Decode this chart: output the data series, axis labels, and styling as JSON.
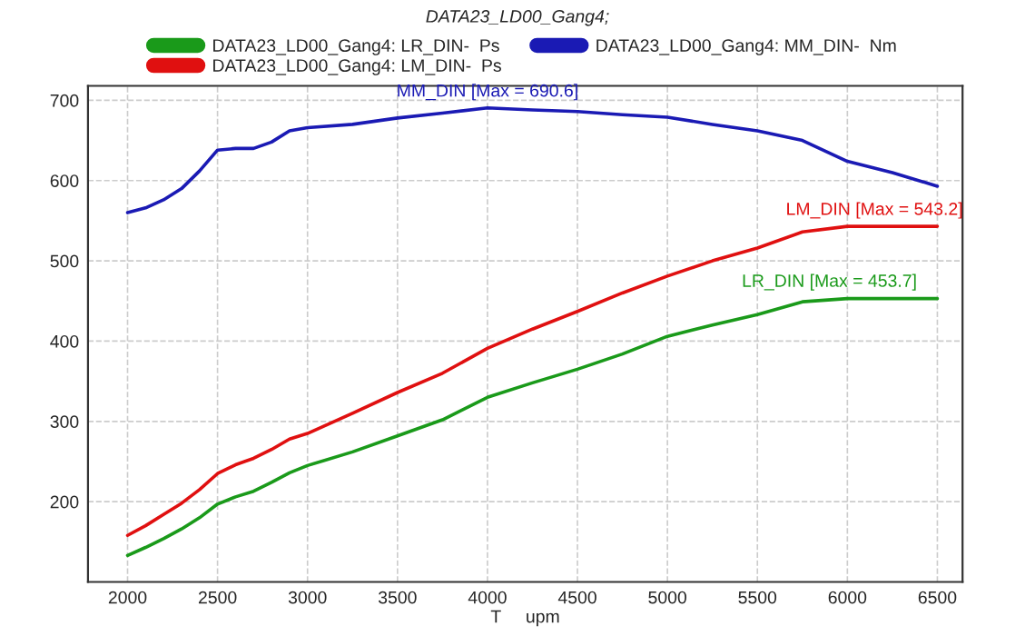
{
  "chart_data": {
    "type": "line",
    "title": "DATA23_LD00_Gang4;",
    "xlabel": "T     upm",
    "x": [
      2000,
      2100,
      2200,
      2300,
      2400,
      2500,
      2600,
      2700,
      2800,
      2900,
      3000,
      3250,
      3500,
      3750,
      4000,
      4250,
      4500,
      4750,
      5000,
      5250,
      5500,
      5750,
      6000,
      6250,
      6500
    ],
    "series": [
      {
        "name": "DATA23_LD00_Gang4: LR_DIN-  Ps",
        "color": "#1a9a1a",
        "values": [
          133,
          143,
          154,
          166,
          180,
          197,
          206,
          213,
          224,
          236,
          245,
          262,
          282,
          302,
          330,
          348,
          365,
          384,
          406,
          420,
          433,
          449,
          453,
          453,
          453
        ]
      },
      {
        "name": "DATA23_LD00_Gang4: LM_DIN-  Ps",
        "color": "#e01010",
        "values": [
          158,
          170,
          184,
          198,
          215,
          235,
          246,
          254,
          265,
          278,
          285,
          310,
          336,
          360,
          391,
          415,
          437,
          460,
          481,
          500,
          516,
          536,
          543,
          543,
          543
        ]
      },
      {
        "name": "DATA23_LD00_Gang4: MM_DIN-  Nm",
        "color": "#1a1ab4",
        "values": [
          560,
          566,
          576,
          590,
          612,
          638,
          640,
          640,
          648,
          662,
          666,
          670,
          678,
          684,
          690.6,
          688,
          686,
          682,
          679,
          670,
          662,
          650,
          624,
          610,
          593
        ]
      }
    ],
    "annotations": [
      {
        "text": "MM_DIN [Max = 690.6]",
        "x": 4000,
        "y": 690.6
      },
      {
        "text": "LM_DIN [Max = 543.2]",
        "x": 6150,
        "y": 543.2
      },
      {
        "text": "LR_DIN [Max = 453.7]",
        "x": 5900,
        "y": 453.7
      }
    ],
    "xlim": [
      1780,
      6640
    ],
    "ylim": [
      100,
      718
    ],
    "xticks": [
      2000,
      2500,
      3000,
      3500,
      4000,
      4500,
      5000,
      5500,
      6000,
      6500
    ],
    "yticks": [
      200,
      300,
      400,
      500,
      600,
      700
    ],
    "grid": true,
    "legend": "top",
    "line_style": "solid",
    "marker": "none"
  }
}
